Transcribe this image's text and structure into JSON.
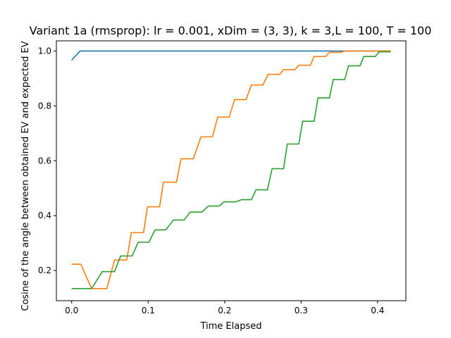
{
  "chart_data": {
    "type": "line",
    "title": "Variant 1a (rmsprop): lr = 0.001, xDim = (3, 3), k = 3,L = 100, T = 100",
    "xlabel": "Time Elapsed",
    "ylabel": "Cosine of the angle between obtained EV and expected EV",
    "xlim": [
      -0.02,
      0.437
    ],
    "ylim": [
      0.09,
      1.037
    ],
    "xticks": [
      0.0,
      0.1,
      0.2,
      0.3,
      0.4
    ],
    "xtick_labels": [
      "0.0",
      "0.1",
      "0.2",
      "0.3",
      "0.4"
    ],
    "yticks": [
      0.2,
      0.4,
      0.6,
      0.8,
      1.0
    ],
    "ytick_labels": [
      "0.2",
      "0.4",
      "0.6",
      "0.8",
      "1.0"
    ],
    "grid": false,
    "series": [
      {
        "color": "#1f77b4",
        "points": [
          [
            0.0,
            0.967
          ],
          [
            0.011,
            1.0
          ],
          [
            0.417,
            1.0
          ]
        ]
      },
      {
        "color": "#ff7f0e",
        "points": [
          [
            0.0,
            0.223
          ],
          [
            0.012,
            0.223
          ],
          [
            0.026,
            0.134
          ],
          [
            0.046,
            0.134
          ],
          [
            0.056,
            0.238
          ],
          [
            0.072,
            0.238
          ],
          [
            0.078,
            0.338
          ],
          [
            0.094,
            0.338
          ],
          [
            0.099,
            0.432
          ],
          [
            0.115,
            0.432
          ],
          [
            0.12,
            0.522
          ],
          [
            0.137,
            0.522
          ],
          [
            0.143,
            0.607
          ],
          [
            0.159,
            0.607
          ],
          [
            0.169,
            0.687
          ],
          [
            0.184,
            0.687
          ],
          [
            0.191,
            0.759
          ],
          [
            0.206,
            0.759
          ],
          [
            0.213,
            0.823
          ],
          [
            0.228,
            0.823
          ],
          [
            0.235,
            0.876
          ],
          [
            0.25,
            0.876
          ],
          [
            0.257,
            0.915
          ],
          [
            0.272,
            0.915
          ],
          [
            0.277,
            0.932
          ],
          [
            0.292,
            0.932
          ],
          [
            0.297,
            0.948
          ],
          [
            0.312,
            0.948
          ],
          [
            0.317,
            0.98
          ],
          [
            0.332,
            0.98
          ],
          [
            0.337,
            0.995
          ],
          [
            0.352,
            0.995
          ],
          [
            0.357,
            1.0
          ],
          [
            0.417,
            1.0
          ]
        ]
      },
      {
        "color": "#2ca02c",
        "points": [
          [
            0.0,
            0.134
          ],
          [
            0.026,
            0.134
          ],
          [
            0.04,
            0.196
          ],
          [
            0.056,
            0.196
          ],
          [
            0.064,
            0.253
          ],
          [
            0.079,
            0.253
          ],
          [
            0.087,
            0.303
          ],
          [
            0.101,
            0.303
          ],
          [
            0.109,
            0.348
          ],
          [
            0.123,
            0.348
          ],
          [
            0.133,
            0.384
          ],
          [
            0.147,
            0.384
          ],
          [
            0.155,
            0.413
          ],
          [
            0.17,
            0.413
          ],
          [
            0.179,
            0.435
          ],
          [
            0.193,
            0.435
          ],
          [
            0.199,
            0.45
          ],
          [
            0.214,
            0.45
          ],
          [
            0.222,
            0.458
          ],
          [
            0.235,
            0.458
          ],
          [
            0.241,
            0.494
          ],
          [
            0.256,
            0.494
          ],
          [
            0.262,
            0.571
          ],
          [
            0.277,
            0.571
          ],
          [
            0.282,
            0.661
          ],
          [
            0.297,
            0.661
          ],
          [
            0.302,
            0.744
          ],
          [
            0.317,
            0.744
          ],
          [
            0.322,
            0.829
          ],
          [
            0.337,
            0.829
          ],
          [
            0.342,
            0.896
          ],
          [
            0.357,
            0.896
          ],
          [
            0.362,
            0.946
          ],
          [
            0.377,
            0.946
          ],
          [
            0.382,
            0.98
          ],
          [
            0.397,
            0.98
          ],
          [
            0.402,
            0.997
          ],
          [
            0.417,
            0.997
          ]
        ]
      }
    ]
  }
}
